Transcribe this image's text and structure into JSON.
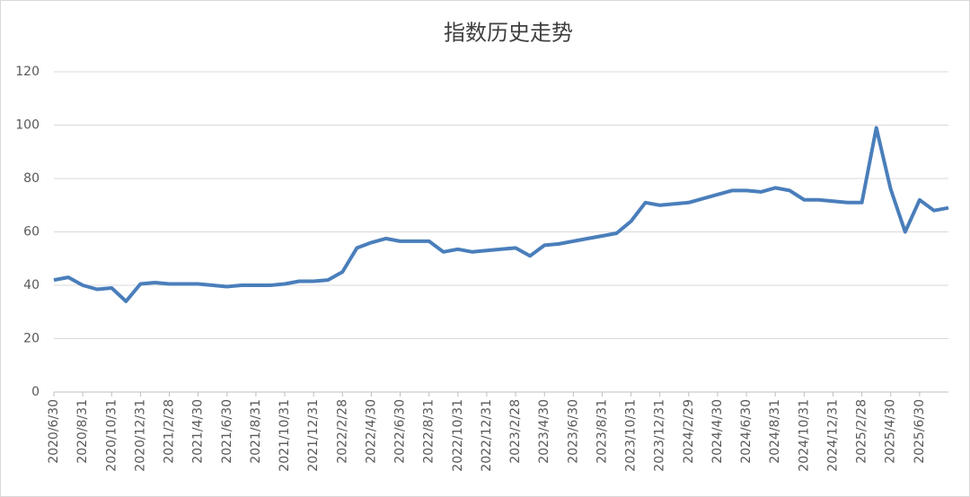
{
  "chart_data": {
    "type": "line",
    "title": "指数历史走势",
    "categories": [
      "2020/6/30",
      null,
      "2020/8/31",
      null,
      "2020/10/31",
      null,
      "2020/12/31",
      null,
      "2021/2/28",
      null,
      "2021/4/30",
      null,
      "2021/6/30",
      null,
      "2021/8/31",
      null,
      "2021/10/31",
      null,
      "2021/12/31",
      null,
      "2022/2/28",
      null,
      "2022/4/30",
      null,
      "2022/6/30",
      null,
      "2022/8/31",
      null,
      "2022/10/31",
      null,
      "2022/12/31",
      null,
      "2023/2/28",
      null,
      "2023/4/30",
      null,
      "2023/6/30",
      null,
      "2023/8/31",
      null,
      "2023/10/31",
      null,
      "2023/12/31",
      null,
      "2024/2/29",
      null,
      "2024/4/30",
      null,
      "2024/6/30",
      null,
      "2024/8/31",
      null,
      "2024/10/31",
      null,
      "2024/12/31",
      null,
      "2025/2/28",
      null,
      "2025/4/30",
      null,
      "2025/6/30",
      null,
      null
    ],
    "values": [
      42,
      43,
      40,
      38.5,
      39,
      34,
      40.5,
      41,
      40.5,
      40.5,
      40.5,
      40,
      39.5,
      40,
      40,
      40,
      40.5,
      41.5,
      41.5,
      42,
      45,
      54,
      56,
      57.5,
      56.5,
      56.5,
      56.5,
      52.5,
      53.5,
      52.5,
      53,
      53.5,
      54,
      51,
      55,
      55.5,
      56.5,
      57.5,
      58.5,
      59.5,
      64,
      71,
      70,
      70.5,
      71,
      72.5,
      74,
      75.5,
      75.5,
      75,
      76.5,
      75.5,
      72,
      72,
      71.5,
      71,
      71,
      99,
      76,
      60,
      72,
      68,
      69
    ],
    "color": "#4a7ebb",
    "ylim": [
      0,
      120
    ],
    "yticks": [
      0,
      20,
      40,
      60,
      80,
      100,
      120
    ],
    "grid": true
  }
}
